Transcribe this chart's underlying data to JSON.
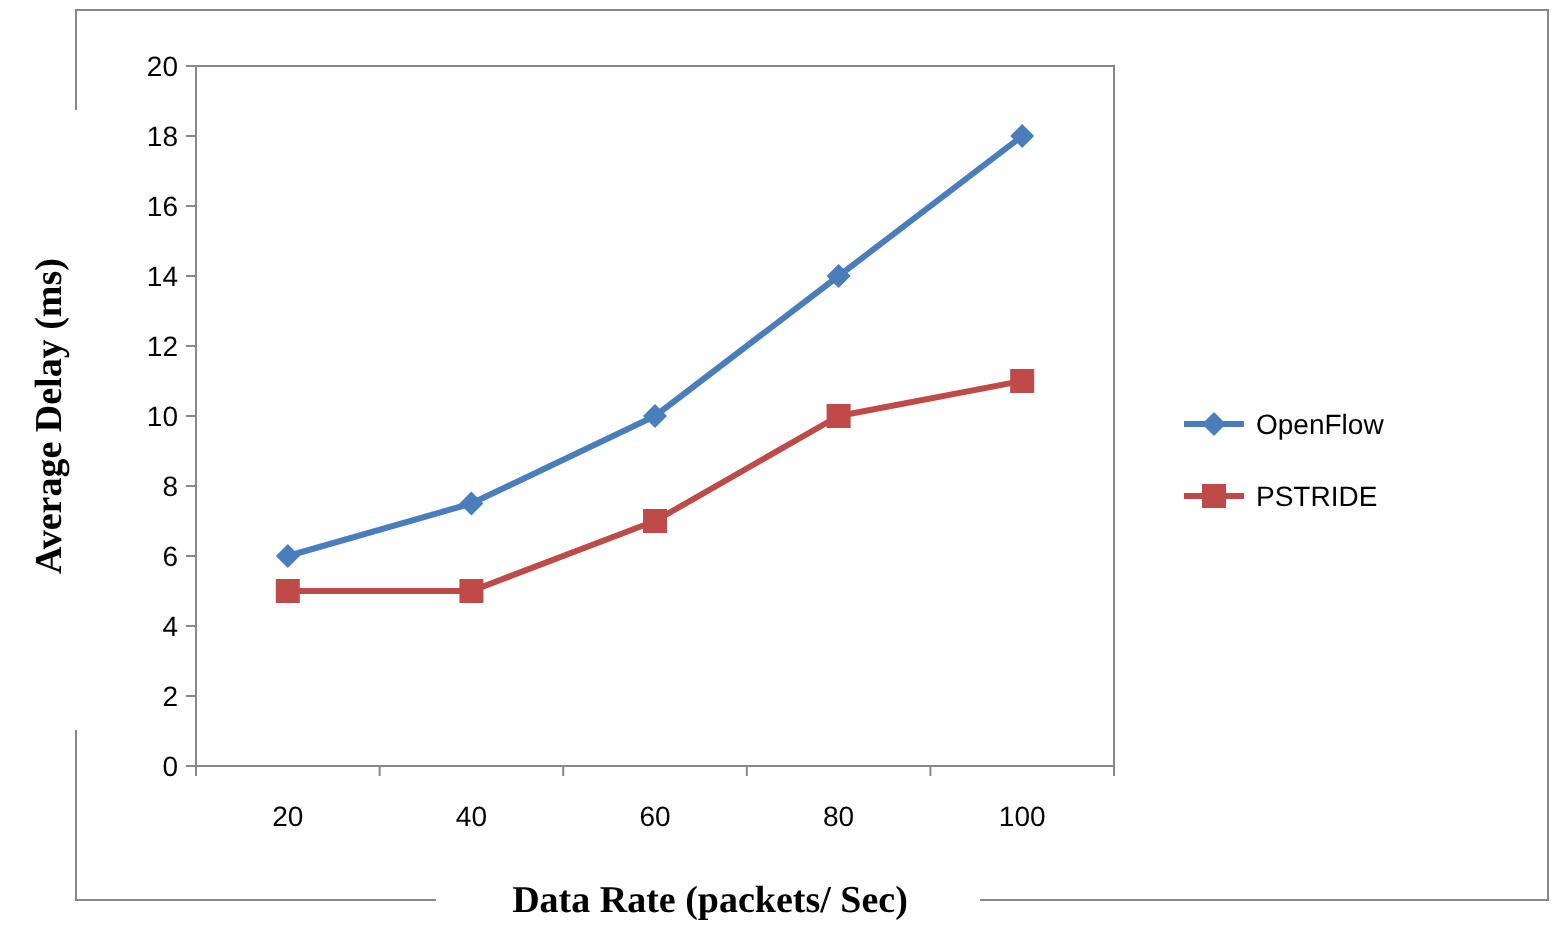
{
  "chart_data": {
    "type": "line",
    "xlabel": "Data Rate (packets/ Sec)",
    "ylabel": "Average Delay (ms)",
    "categories": [
      "20",
      "40",
      "60",
      "80",
      "100"
    ],
    "series": [
      {
        "name": "OpenFlow",
        "color": "#4a7ebb",
        "marker": "diamond",
        "values": [
          6,
          7.5,
          10,
          14,
          18
        ]
      },
      {
        "name": "PSTRIDE",
        "color": "#be4b48",
        "marker": "square",
        "values": [
          5,
          5,
          7,
          10,
          11
        ]
      }
    ],
    "ylim": [
      0,
      20
    ],
    "yticks": [
      0,
      2,
      4,
      6,
      8,
      10,
      12,
      14,
      16,
      18,
      20
    ],
    "grid": false,
    "legend": "right",
    "line_style": "solid"
  }
}
